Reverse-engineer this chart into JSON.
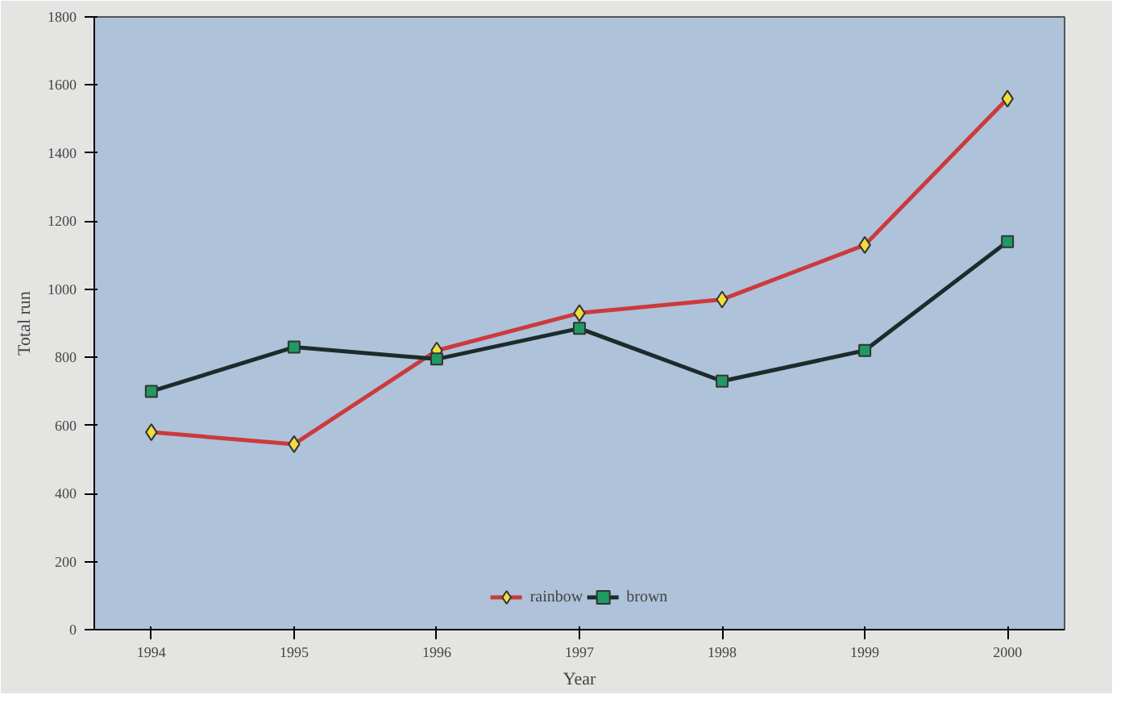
{
  "chart_data": {
    "type": "line",
    "xlabel": "Year",
    "ylabel": "Total run",
    "x": [
      1994,
      1995,
      1996,
      1997,
      1998,
      1999,
      2000
    ],
    "series": [
      {
        "name": "rainbow",
        "color": "#cc3a3c",
        "marker": "diamond",
        "values": [
          580,
          545,
          820,
          930,
          970,
          1130,
          1560
        ]
      },
      {
        "name": "brown",
        "color": "#1c2b2b",
        "marker": "square",
        "values": [
          700,
          830,
          795,
          885,
          730,
          820,
          1140
        ]
      }
    ],
    "xlim": [
      1993.6,
      2000.4
    ],
    "xticks": [
      1994,
      1995,
      1996,
      1997,
      1998,
      1999,
      2000
    ],
    "ylim": [
      0,
      1800
    ],
    "yticks": [
      0,
      200,
      400,
      600,
      800,
      1000,
      1200,
      1400,
      1600,
      1800
    ],
    "grid": false,
    "legend": "bottom"
  }
}
